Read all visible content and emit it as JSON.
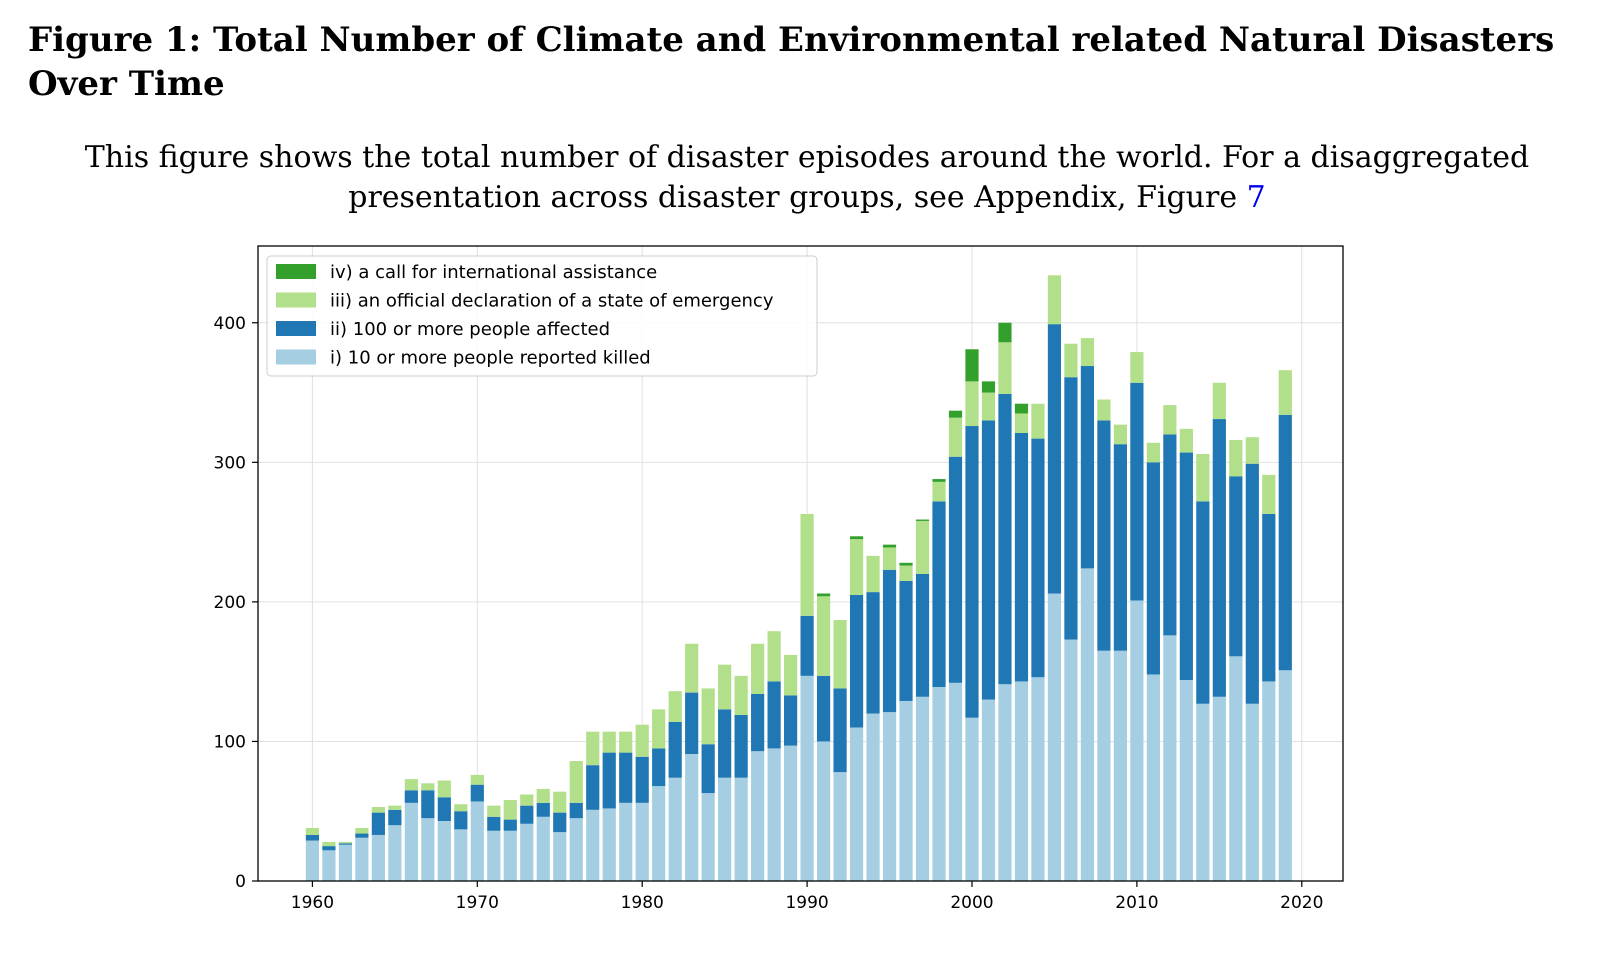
{
  "figure": {
    "title": "Figure 1: Total Number of Climate and Environmental related Natural Disasters Over Time",
    "caption_text": "This figure shows the total number of disaster episodes around the world. For a disaggregated presentation across disaster groups, see Appendix, Figure",
    "caption_ref": "7"
  },
  "chart_data": {
    "type": "bar",
    "stacked": true,
    "title": "",
    "xlabel": "",
    "ylabel": "",
    "xlim": [
      1956.7,
      2022.5
    ],
    "ylim": [
      0,
      455
    ],
    "xticks": [
      1960,
      1970,
      1980,
      1990,
      2000,
      2010,
      2020
    ],
    "yticks": [
      0,
      100,
      200,
      300,
      400
    ],
    "grid": true,
    "legend_position": "top-left",
    "legend_order": [
      3,
      2,
      1,
      0
    ],
    "x": [
      1960,
      1961,
      1962,
      1963,
      1964,
      1965,
      1966,
      1967,
      1968,
      1969,
      1970,
      1971,
      1972,
      1973,
      1974,
      1975,
      1976,
      1977,
      1978,
      1979,
      1980,
      1981,
      1982,
      1983,
      1984,
      1985,
      1986,
      1987,
      1988,
      1989,
      1990,
      1991,
      1992,
      1993,
      1994,
      1995,
      1996,
      1997,
      1998,
      1999,
      2000,
      2001,
      2002,
      2003,
      2004,
      2005,
      2006,
      2007,
      2008,
      2009,
      2010,
      2011,
      2012,
      2013,
      2014,
      2015,
      2016,
      2017,
      2018,
      2019
    ],
    "series": [
      {
        "name": "i) 10 or more people reported killed",
        "color": "#a6cee3",
        "values": [
          29,
          22,
          26,
          31,
          33,
          40,
          56,
          45,
          43,
          37,
          57,
          36,
          36,
          41,
          46,
          35,
          45,
          51,
          52,
          56,
          56,
          68,
          74,
          91,
          63,
          74,
          74,
          93,
          95,
          97,
          147,
          100,
          78,
          110,
          120,
          121,
          129,
          132,
          139,
          142,
          117,
          130,
          141,
          143,
          146,
          206,
          173,
          224,
          165,
          165,
          201,
          148,
          176,
          144,
          127,
          132,
          161,
          127,
          143,
          151
        ]
      },
      {
        "name": "ii) 100 or more people affected",
        "color": "#1f78b4",
        "values": [
          4,
          3,
          1,
          3,
          16,
          11,
          9,
          20,
          17,
          13,
          12,
          10,
          8,
          13,
          10,
          14,
          11,
          32,
          40,
          36,
          33,
          27,
          40,
          44,
          35,
          49,
          45,
          41,
          48,
          36,
          43,
          47,
          60,
          95,
          87,
          102,
          86,
          88,
          133,
          162,
          209,
          200,
          208,
          178,
          171,
          193,
          188,
          145,
          165,
          148,
          156,
          152,
          144,
          163,
          145,
          199,
          129,
          172,
          120,
          183
        ]
      },
      {
        "name": "iii) an official declaration of a state of emergency",
        "color": "#b2df8a",
        "values": [
          5,
          3,
          1,
          4,
          4,
          3,
          8,
          5,
          12,
          5,
          7,
          8,
          14,
          8,
          10,
          15,
          30,
          24,
          15,
          15,
          23,
          28,
          22,
          35,
          40,
          32,
          28,
          36,
          36,
          29,
          73,
          57,
          49,
          40,
          26,
          16,
          11,
          38,
          14,
          28,
          32,
          20,
          37,
          14,
          25,
          35,
          24,
          20,
          15,
          14,
          22,
          14,
          21,
          17,
          34,
          26,
          26,
          19,
          28,
          32
        ]
      },
      {
        "name": "iv) a call for international assistance",
        "color": "#33a02c",
        "values": [
          0,
          0,
          0,
          0,
          0,
          0,
          0,
          0,
          0,
          0,
          0,
          0,
          0,
          0,
          0,
          0,
          0,
          0,
          0,
          0,
          0,
          0,
          0,
          0,
          0,
          0,
          0,
          0,
          0,
          0,
          0,
          2,
          0,
          2,
          0,
          2,
          2,
          1,
          2,
          5,
          23,
          8,
          14,
          7,
          0,
          0,
          0,
          0,
          0,
          0,
          0,
          0,
          0,
          0,
          0,
          0,
          0,
          0,
          0,
          0
        ]
      }
    ]
  }
}
